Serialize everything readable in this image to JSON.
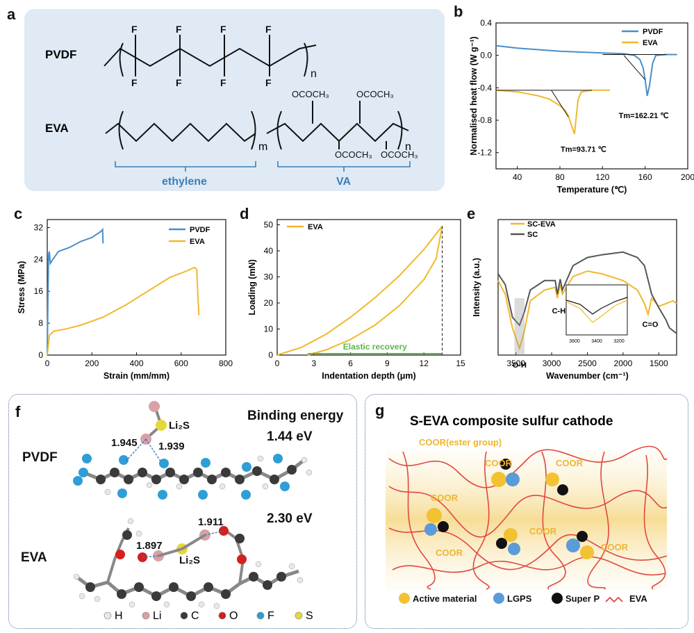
{
  "panels": {
    "a": {
      "letter": "a",
      "pvdf_label": "PVDF",
      "eva_label": "EVA",
      "atom_F": "F",
      "subscript_n": "n",
      "subscript_m": "m",
      "group_label": "OCOCH₃",
      "ethylene_label": "ethylene",
      "va_label": "VA",
      "colors": {
        "background": "#dfeaf5",
        "bracket": "#3b7fb8"
      }
    },
    "b": {
      "letter": "b",
      "ylabel": "Normalised heat flow (W g⁻¹)",
      "xlabel": "Temperature (℃)",
      "legend": [
        "PVDF",
        "EVA"
      ],
      "tm_pvdf": "Tm=162.21 ℃",
      "tm_eva": "Tm=93.71 ℃"
    },
    "c": {
      "letter": "c",
      "ylabel": "Stress (MPa)",
      "xlabel": "Strain (mm/mm)",
      "legend": [
        "PVDF",
        "EVA"
      ]
    },
    "d": {
      "letter": "d",
      "ylabel": "Loading (mN)",
      "xlabel": "Indentation depth (μm)",
      "legend": [
        "EVA"
      ],
      "annotation": "Elastic recovery"
    },
    "e": {
      "letter": "e",
      "ylabel": "Intensity (a.u.)",
      "xlabel": "Wavenumber (cm⁻¹)",
      "legend": [
        "SC-EVA",
        "SC"
      ],
      "peak_oh": "O-H",
      "peak_ch": "C-H",
      "peak_co": "C=O",
      "inset_ticks": [
        "3600",
        "3400",
        "3200"
      ]
    },
    "f": {
      "letter": "f",
      "title": "Binding energy",
      "pvdf_label": "PVDF",
      "eva_label": "EVA",
      "energy_pvdf": "1.44 eV",
      "energy_eva": "2.30 eV",
      "li2s_label": "Li₂S",
      "bond_pvdf_1": "1.945",
      "bond_pvdf_2": "1.939",
      "bond_eva_1": "1.897",
      "bond_eva_2": "1.911",
      "atom_legend": [
        {
          "label": "H",
          "color": "#e8e8e8"
        },
        {
          "label": "Li",
          "color": "#d9a0a6"
        },
        {
          "label": "C",
          "color": "#3a3a3a"
        },
        {
          "label": "O",
          "color": "#d42020"
        },
        {
          "label": "F",
          "color": "#2f9ed6"
        },
        {
          "label": "S",
          "color": "#e4d83a"
        }
      ]
    },
    "g": {
      "letter": "g",
      "title": "S-EVA composite sulfur cathode",
      "coor_ester": "COOR(ester group)",
      "coor": "COOR",
      "legend": [
        {
          "label": "Active material",
          "color": "#f2c233"
        },
        {
          "label": "LGPS",
          "color": "#5b9bd8"
        },
        {
          "label": "Super P",
          "color": "#111111"
        },
        {
          "label": "EVA",
          "color": "#e0473f"
        }
      ]
    }
  },
  "chart_data": [
    {
      "type": "line",
      "panel": "b",
      "xlabel": "Temperature (℃)",
      "ylabel": "Normalised heat flow (W g⁻¹)",
      "xlim": [
        20,
        200
      ],
      "ylim": [
        -1.4,
        0.4
      ],
      "xticks": [
        40,
        80,
        120,
        160,
        200
      ],
      "yticks": [
        0.4,
        0.0,
        -0.4,
        -0.8,
        -1.2
      ],
      "legend_position": "top-right",
      "series": [
        {
          "name": "PVDF",
          "color": "#4a8ec9",
          "x": [
            20,
            40,
            60,
            80,
            100,
            120,
            140,
            150,
            155,
            158,
            160,
            162,
            164,
            167,
            170,
            180,
            190
          ],
          "y": [
            0.12,
            0.09,
            0.07,
            0.05,
            0.04,
            0.03,
            0.02,
            0.0,
            -0.05,
            -0.15,
            -0.3,
            -0.5,
            -0.38,
            -0.1,
            0.0,
            0.01,
            0.01
          ]
        },
        {
          "name": "EVA",
          "color": "#f2b829",
          "x": [
            20,
            40,
            60,
            70,
            80,
            85,
            88,
            91,
            93.7,
            95,
            97,
            100,
            110,
            127
          ],
          "y": [
            -0.43,
            -0.45,
            -0.5,
            -0.54,
            -0.62,
            -0.68,
            -0.75,
            -0.87,
            -0.97,
            -0.8,
            -0.55,
            -0.45,
            -0.43,
            -0.43
          ]
        }
      ]
    },
    {
      "type": "line",
      "panel": "c",
      "xlabel": "Strain (mm/mm)",
      "ylabel": "Stress (MPa)",
      "xlim": [
        0,
        800
      ],
      "ylim": [
        0,
        34
      ],
      "xticks": [
        0,
        200,
        400,
        600,
        800
      ],
      "yticks": [
        0,
        8,
        16,
        24,
        32
      ],
      "legend_position": "top-right",
      "series": [
        {
          "name": "PVDF",
          "color": "#4a8ec9",
          "x": [
            0,
            3,
            6,
            9,
            14,
            25,
            50,
            100,
            150,
            200,
            240,
            248,
            250
          ],
          "y": [
            0,
            14,
            25,
            26,
            23,
            24,
            26,
            27,
            28.5,
            29.5,
            31,
            31.5,
            28
          ]
        },
        {
          "name": "EVA",
          "color": "#f2b829",
          "x": [
            0,
            10,
            30,
            80,
            150,
            250,
            350,
            450,
            550,
            620,
            660,
            670,
            675,
            680
          ],
          "y": [
            0,
            5,
            6,
            6.5,
            7.5,
            9.5,
            12.5,
            16,
            19.5,
            21,
            22,
            21.5,
            15,
            10
          ]
        }
      ]
    },
    {
      "type": "line",
      "panel": "d",
      "xlabel": "Indentation depth (μm)",
      "ylabel": "Loading (mN)",
      "xlim": [
        0,
        15
      ],
      "ylim": [
        0,
        52
      ],
      "xticks": [
        0,
        3,
        6,
        9,
        12,
        15
      ],
      "yticks": [
        0,
        10,
        20,
        30,
        40,
        50
      ],
      "legend_position": "top-left",
      "series": [
        {
          "name": "EVA",
          "color": "#f2b829",
          "x": [
            0,
            2,
            4,
            6,
            8,
            10,
            12,
            13.5
          ],
          "y": [
            0,
            3,
            8,
            14.5,
            22,
            30.5,
            40.5,
            49.5
          ]
        },
        {
          "name": "",
          "color": "#f2b829",
          "x": [
            2.5,
            4,
            6,
            8,
            10,
            12,
            13,
            13.5
          ],
          "y": [
            0,
            2,
            6,
            11.5,
            19,
            29,
            37,
            49.5
          ]
        }
      ],
      "elastic_recovery_range": [
        2.5,
        13.5
      ]
    },
    {
      "type": "line",
      "panel": "e",
      "xlabel": "Wavenumber (cm⁻¹)",
      "ylabel": "Intensity (a.u.)",
      "xlim": [
        3750,
        1250
      ],
      "xticks": [
        3500,
        3000,
        2500,
        2000,
        1500
      ],
      "legend_position": "top-left",
      "series": [
        {
          "name": "SC-EVA",
          "color": "#f2b829",
          "x": [
            3750,
            3650,
            3550,
            3450,
            3380,
            3300,
            3100,
            2950,
            2920,
            2880,
            2850,
            2700,
            2500,
            2300,
            2000,
            1800,
            1700,
            1650,
            1600,
            1500,
            1400,
            1300,
            1250
          ],
          "y": [
            0.55,
            0.45,
            0.2,
            0.05,
            0.18,
            0.4,
            0.48,
            0.5,
            0.42,
            0.52,
            0.45,
            0.58,
            0.62,
            0.6,
            0.55,
            0.48,
            0.38,
            0.3,
            0.42,
            0.36,
            0.38,
            0.4,
            0.38
          ]
        },
        {
          "name": "SC",
          "color": "#555555",
          "x": [
            3750,
            3650,
            3550,
            3450,
            3380,
            3300,
            3100,
            2950,
            2920,
            2880,
            2850,
            2700,
            2500,
            2300,
            2000,
            1800,
            1700,
            1600,
            1500,
            1400,
            1350,
            1300,
            1250
          ],
          "y": [
            0.6,
            0.52,
            0.28,
            0.22,
            0.32,
            0.48,
            0.55,
            0.55,
            0.45,
            0.56,
            0.48,
            0.66,
            0.72,
            0.74,
            0.76,
            0.72,
            0.66,
            0.45,
            0.35,
            0.26,
            0.2,
            0.18,
            0.16
          ]
        }
      ]
    }
  ]
}
